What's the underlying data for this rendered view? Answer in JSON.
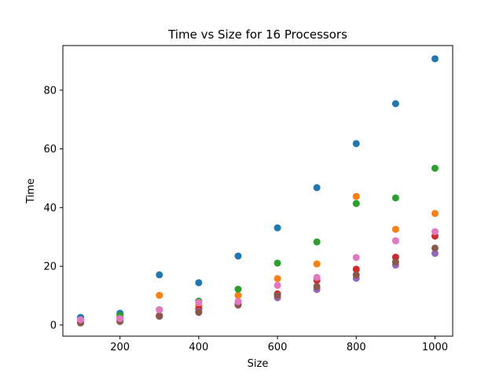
{
  "chart_data": {
    "type": "scatter",
    "title": "Time vs Size for 16 Processors",
    "xlabel": "Size",
    "ylabel": "Time",
    "xlim": [
      55,
      1045
    ],
    "ylim": [
      -3.8,
      95.2
    ],
    "xticks": [
      200,
      400,
      600,
      800,
      1000
    ],
    "yticks": [
      0,
      20,
      40,
      60,
      80
    ],
    "grid": false,
    "x": [
      100,
      200,
      300,
      400,
      500,
      600,
      700,
      800,
      900,
      1000
    ],
    "series": [
      {
        "color": "#1f77b4",
        "values": [
          2.6,
          4.0,
          17.1,
          14.4,
          23.5,
          33.1,
          46.8,
          61.8,
          75.4,
          90.7
        ]
      },
      {
        "color": "#ff7f0e",
        "values": [
          1.2,
          2.7,
          10.1,
          6.5,
          10.1,
          15.8,
          20.8,
          43.8,
          32.6,
          38.0
        ]
      },
      {
        "color": "#2ca02c",
        "values": [
          1.8,
          3.3,
          5.2,
          8.1,
          12.2,
          21.1,
          28.3,
          41.4,
          43.3,
          53.4
        ]
      },
      {
        "color": "#d62728",
        "values": [
          0.9,
          1.8,
          3.2,
          5.5,
          7.2,
          10.6,
          15.2,
          19.0,
          23.1,
          30.3
        ]
      },
      {
        "color": "#9467bd",
        "values": [
          0.8,
          1.4,
          3.0,
          4.6,
          7.0,
          9.3,
          12.1,
          15.9,
          20.4,
          24.4
        ]
      },
      {
        "color": "#8c564b",
        "values": [
          0.7,
          1.2,
          3.0,
          4.3,
          6.8,
          10.1,
          13.1,
          17.1,
          21.5,
          26.2
        ]
      },
      {
        "color": "#e377c2",
        "values": [
          1.8,
          2.2,
          5.2,
          7.6,
          8.0,
          13.5,
          16.2,
          23.0,
          28.7,
          31.8
        ]
      }
    ]
  }
}
